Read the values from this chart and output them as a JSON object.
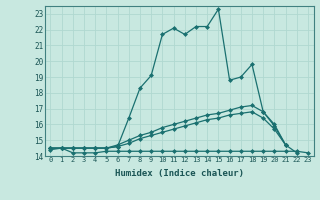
{
  "xlabel": "Humidex (Indice chaleur)",
  "background_color": "#c8e8e0",
  "grid_color": "#b0d8d0",
  "line_color": "#1a7070",
  "xlim": [
    -0.5,
    23.5
  ],
  "ylim": [
    14.0,
    23.5
  ],
  "xticks": [
    0,
    1,
    2,
    3,
    4,
    5,
    6,
    7,
    8,
    9,
    10,
    11,
    12,
    13,
    14,
    15,
    16,
    17,
    18,
    19,
    20,
    21,
    22,
    23
  ],
  "yticks": [
    14,
    15,
    16,
    17,
    18,
    19,
    20,
    21,
    22,
    23
  ],
  "series": [
    {
      "x": [
        0,
        1,
        2,
        3,
        4,
        5,
        6,
        7,
        8,
        9,
        10,
        11,
        12,
        13,
        14,
        15,
        16,
        17,
        18,
        19,
        20,
        21,
        22
      ],
      "y": [
        14.5,
        14.5,
        14.5,
        14.5,
        14.5,
        14.5,
        14.6,
        16.4,
        18.3,
        19.1,
        21.7,
        22.1,
        21.7,
        22.2,
        22.2,
        23.3,
        18.8,
        19.0,
        19.8,
        16.8,
        15.9,
        14.7,
        14.2
      ]
    },
    {
      "x": [
        0,
        1,
        2,
        3,
        4,
        5,
        6,
        7,
        8,
        9,
        10,
        11,
        12,
        13,
        14,
        15,
        16,
        17,
        18,
        19,
        20,
        21,
        22,
        23
      ],
      "y": [
        14.4,
        14.5,
        14.2,
        14.2,
        14.2,
        14.3,
        14.3,
        14.3,
        14.3,
        14.3,
        14.3,
        14.3,
        14.3,
        14.3,
        14.3,
        14.3,
        14.3,
        14.3,
        14.3,
        14.3,
        14.3,
        14.3,
        14.3,
        14.2
      ]
    },
    {
      "x": [
        0,
        1,
        2,
        3,
        4,
        5,
        6,
        7,
        8,
        9,
        10,
        11,
        12,
        13,
        14,
        15,
        16,
        17,
        18,
        19,
        20,
        21
      ],
      "y": [
        14.5,
        14.5,
        14.5,
        14.5,
        14.5,
        14.5,
        14.7,
        15.0,
        15.3,
        15.5,
        15.8,
        16.0,
        16.2,
        16.4,
        16.6,
        16.7,
        16.9,
        17.1,
        17.2,
        16.8,
        16.0,
        14.7
      ]
    },
    {
      "x": [
        0,
        1,
        2,
        3,
        4,
        5,
        6,
        7,
        8,
        9,
        10,
        11,
        12,
        13,
        14,
        15,
        16,
        17,
        18,
        19,
        20,
        21
      ],
      "y": [
        14.5,
        14.5,
        14.5,
        14.5,
        14.5,
        14.5,
        14.6,
        14.8,
        15.1,
        15.3,
        15.5,
        15.7,
        15.9,
        16.1,
        16.3,
        16.4,
        16.6,
        16.7,
        16.8,
        16.4,
        15.7,
        14.7
      ]
    }
  ]
}
